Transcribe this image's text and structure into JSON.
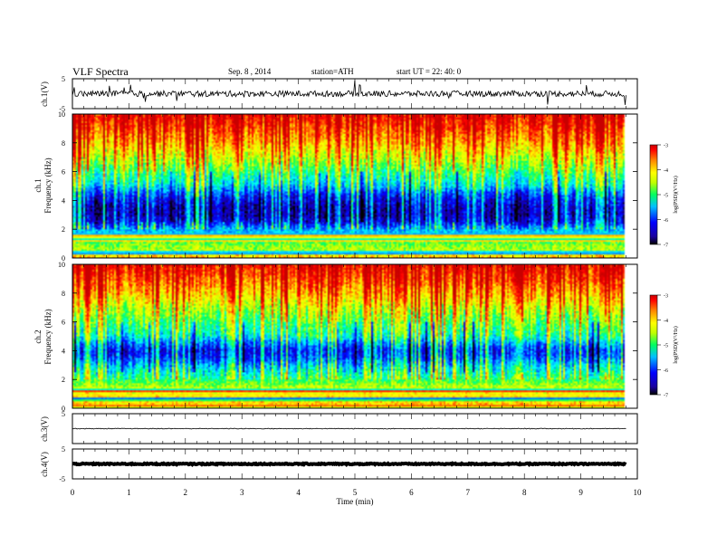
{
  "header": {
    "title": "VLF  Spectra",
    "date": "Sep. 8  , 2014",
    "station": "station=ATH",
    "start": "start  UT  =   22: 40: 0"
  },
  "chart_data": [
    {
      "type": "line",
      "panel": "ch1-waveform",
      "ylabel": "ch.1(V)",
      "ylim": [
        -5,
        5
      ],
      "yticks": [
        5,
        -5
      ],
      "xlim": [
        0,
        10
      ],
      "baseline": 0,
      "noise_amplitude": 1.0,
      "spike_amplitude": 4.5,
      "trace_color": "#000000"
    },
    {
      "type": "heatmap",
      "panel": "ch1-spectrogram",
      "ylabel": "ch.1\nFrequency  (kHz)",
      "ylim": [
        0,
        10
      ],
      "yticks": [
        0,
        2,
        4,
        6,
        8,
        10
      ],
      "xlim": [
        0,
        10
      ],
      "data_end_min": 9.8,
      "colorbar": {
        "label": "log(PSD)(V²/Hz)",
        "range": [
          -7,
          -3
        ],
        "ticks": [
          -3,
          -4,
          -5,
          -6,
          -7
        ]
      },
      "logpsd_profile": [
        {
          "f": 0.0,
          "v": -4.0
        },
        {
          "f": 0.5,
          "v": -4.6
        },
        {
          "f": 1.0,
          "v": -4.8
        },
        {
          "f": 1.5,
          "v": -5.4
        },
        {
          "f": 2.0,
          "v": -5.7
        },
        {
          "f": 2.5,
          "v": -6.3
        },
        {
          "f": 3.0,
          "v": -6.5
        },
        {
          "f": 3.5,
          "v": -6.5
        },
        {
          "f": 4.0,
          "v": -6.3
        },
        {
          "f": 4.5,
          "v": -6.0
        },
        {
          "f": 5.0,
          "v": -5.5
        },
        {
          "f": 6.0,
          "v": -5.0
        },
        {
          "f": 7.0,
          "v": -4.5
        },
        {
          "f": 8.0,
          "v": -4.0
        },
        {
          "f": 9.0,
          "v": -3.6
        },
        {
          "f": 10.0,
          "v": -3.3
        }
      ]
    },
    {
      "type": "heatmap",
      "panel": "ch2-spectrogram",
      "ylabel": "ch.2\nFrequency  (kHz)",
      "ylim": [
        0,
        10
      ],
      "yticks": [
        0,
        2,
        4,
        6,
        8,
        10
      ],
      "xlim": [
        0,
        10
      ],
      "data_end_min": 9.8,
      "colorbar": {
        "label": "log(PSD)(V²/Hz)",
        "range": [
          -7,
          -3
        ],
        "ticks": [
          -3,
          -4,
          -5,
          -6,
          -7
        ]
      },
      "logpsd_profile": [
        {
          "f": 0.0,
          "v": -4.0
        },
        {
          "f": 0.5,
          "v": -4.2
        },
        {
          "f": 1.0,
          "v": -4.3
        },
        {
          "f": 1.5,
          "v": -4.6
        },
        {
          "f": 2.0,
          "v": -5.0
        },
        {
          "f": 2.5,
          "v": -5.3
        },
        {
          "f": 3.0,
          "v": -5.6
        },
        {
          "f": 3.5,
          "v": -6.0
        },
        {
          "f": 4.0,
          "v": -6.2
        },
        {
          "f": 4.5,
          "v": -5.8
        },
        {
          "f": 5.0,
          "v": -5.3
        },
        {
          "f": 6.0,
          "v": -4.9
        },
        {
          "f": 7.0,
          "v": -4.5
        },
        {
          "f": 8.0,
          "v": -4.0
        },
        {
          "f": 9.0,
          "v": -3.6
        },
        {
          "f": 10.0,
          "v": -3.3
        }
      ]
    },
    {
      "type": "line",
      "panel": "ch3-waveform",
      "ylabel": "ch.3(V)",
      "ylim": [
        -5,
        5
      ],
      "yticks": [
        5
      ],
      "xlim": [
        0,
        10
      ],
      "baseline": 0,
      "noise_amplitude": 0.12,
      "trace_color": "#000000"
    },
    {
      "type": "line",
      "panel": "ch4-waveform",
      "ylabel": "ch.4(V)",
      "ylim": [
        -5,
        5
      ],
      "yticks": [
        5,
        -5
      ],
      "xlim": [
        0,
        10
      ],
      "baseline": 0,
      "noise_amplitude": 0.2,
      "trace_color": "#000000"
    }
  ],
  "x_axis": {
    "label": "Time  (min)",
    "ticks": [
      "0",
      "1",
      "2",
      "3",
      "4",
      "5",
      "6",
      "7",
      "8",
      "9",
      "10"
    ]
  },
  "colors": {
    "colormap": [
      "#000000",
      "#1a00a0",
      "#0000ff",
      "#0080ff",
      "#00ffff",
      "#00ff60",
      "#c0ff00",
      "#ffff00",
      "#ff8000",
      "#ff0000",
      "#c80000"
    ]
  }
}
